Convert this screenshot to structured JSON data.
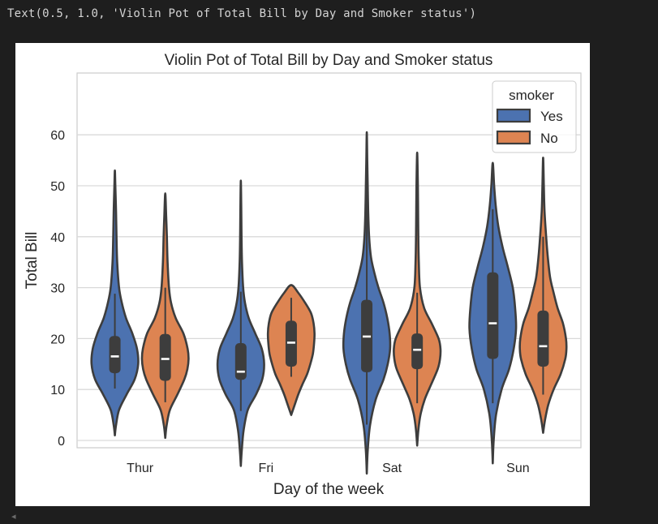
{
  "output": {
    "text": "Text(0.5, 1.0, 'Violin Pot of Total Bill by Day and Smoker status')"
  },
  "scroll_indicator": "◂",
  "chart_data": {
    "type": "violin",
    "title": "Violin Pot of Total Bill by Day and Smoker status",
    "xlabel": "Day of the week",
    "ylabel": "Total Bill",
    "categories": [
      "Thur",
      "Fri",
      "Sat",
      "Sun"
    ],
    "yticks": [
      0,
      10,
      20,
      30,
      40,
      50,
      60
    ],
    "ylim": [
      -10,
      64
    ],
    "grid": true,
    "legend": {
      "title": "smoker",
      "placement": "top-right"
    },
    "colors": {
      "Yes": "#4c72b0",
      "No": "#dd8452",
      "outline": "#3d3d3d",
      "grid": "#d9d9d9"
    },
    "series": [
      {
        "name": "Yes",
        "violins": [
          {
            "category": "Thur",
            "min": 1,
            "max": 53,
            "q1": 13.2,
            "median": 16.5,
            "q3": 20.5,
            "whisker_low": 10.2,
            "whisker_high": 28.8,
            "max_width": 0.37,
            "profile": [
              [
                1,
                0.0
              ],
              [
                3,
                0.05
              ],
              [
                6,
                0.18
              ],
              [
                9,
                0.5
              ],
              [
                12,
                0.85
              ],
              [
                15,
                1.0
              ],
              [
                18,
                0.95
              ],
              [
                21,
                0.75
              ],
              [
                24,
                0.48
              ],
              [
                27,
                0.3
              ],
              [
                30,
                0.18
              ],
              [
                35,
                0.1
              ],
              [
                40,
                0.07
              ],
              [
                45,
                0.05
              ],
              [
                50,
                0.02
              ],
              [
                53,
                0.0
              ]
            ]
          },
          {
            "category": "Fri",
            "min": -5,
            "max": 51,
            "q1": 11.9,
            "median": 13.5,
            "q3": 19.1,
            "whisker_low": 5.8,
            "whisker_high": 29.2,
            "max_width": 0.37,
            "profile": [
              [
                -5,
                0.0
              ],
              [
                -2,
                0.04
              ],
              [
                2,
                0.12
              ],
              [
                6,
                0.3
              ],
              [
                9,
                0.65
              ],
              [
                12,
                0.92
              ],
              [
                15,
                1.0
              ],
              [
                18,
                0.9
              ],
              [
                21,
                0.62
              ],
              [
                24,
                0.34
              ],
              [
                27,
                0.18
              ],
              [
                30,
                0.1
              ],
              [
                35,
                0.05
              ],
              [
                40,
                0.03
              ],
              [
                45,
                0.02
              ],
              [
                51,
                0.0
              ]
            ]
          },
          {
            "category": "Sat",
            "min": -6.5,
            "max": 60.5,
            "q1": 13.4,
            "median": 20.4,
            "q3": 27.6,
            "whisker_low": 3.1,
            "whisker_high": 48.2,
            "max_width": 0.37,
            "profile": [
              [
                -6.5,
                0.0
              ],
              [
                -2,
                0.04
              ],
              [
                3,
                0.14
              ],
              [
                8,
                0.38
              ],
              [
                12,
                0.72
              ],
              [
                15,
                0.9
              ],
              [
                18,
                1.0
              ],
              [
                21,
                0.98
              ],
              [
                24,
                0.88
              ],
              [
                27,
                0.72
              ],
              [
                30,
                0.5
              ],
              [
                33,
                0.32
              ],
              [
                36,
                0.18
              ],
              [
                40,
                0.1
              ],
              [
                45,
                0.06
              ],
              [
                50,
                0.04
              ],
              [
                55,
                0.02
              ],
              [
                60.5,
                0.0
              ]
            ]
          },
          {
            "category": "Sun",
            "min": -4.5,
            "max": 54.5,
            "q1": 16.0,
            "median": 23.0,
            "q3": 33.0,
            "whisker_low": 7.3,
            "whisker_high": 45.4,
            "max_width": 0.37,
            "profile": [
              [
                -4.5,
                0.0
              ],
              [
                0,
                0.04
              ],
              [
                5,
                0.14
              ],
              [
                10,
                0.38
              ],
              [
                14,
                0.7
              ],
              [
                18,
                0.9
              ],
              [
                22,
                1.0
              ],
              [
                26,
                0.96
              ],
              [
                30,
                0.86
              ],
              [
                34,
                0.65
              ],
              [
                38,
                0.42
              ],
              [
                42,
                0.24
              ],
              [
                46,
                0.13
              ],
              [
                50,
                0.06
              ],
              [
                54.5,
                0.0
              ]
            ]
          }
        ]
      },
      {
        "name": "No",
        "violins": [
          {
            "category": "Thur",
            "min": 0.5,
            "max": 48.5,
            "q1": 11.7,
            "median": 16.0,
            "q3": 20.9,
            "whisker_low": 7.5,
            "whisker_high": 30.0,
            "max_width": 0.37,
            "profile": [
              [
                0.5,
                0.0
              ],
              [
                3,
                0.06
              ],
              [
                6,
                0.2
              ],
              [
                9,
                0.52
              ],
              [
                12,
                0.82
              ],
              [
                14,
                0.95
              ],
              [
                16,
                1.0
              ],
              [
                18,
                0.96
              ],
              [
                21,
                0.78
              ],
              [
                24,
                0.45
              ],
              [
                27,
                0.25
              ],
              [
                30,
                0.16
              ],
              [
                35,
                0.1
              ],
              [
                40,
                0.07
              ],
              [
                44,
                0.04
              ],
              [
                48.5,
                0.0
              ]
            ]
          },
          {
            "category": "Fri",
            "min": 5,
            "max": 30.5,
            "q1": 14.5,
            "median": 19.2,
            "q3": 23.5,
            "whisker_low": 12.5,
            "whisker_high": 28.0,
            "max_width": 0.37,
            "profile": [
              [
                5,
                0.0
              ],
              [
                7,
                0.15
              ],
              [
                9,
                0.3
              ],
              [
                11,
                0.48
              ],
              [
                13,
                0.68
              ],
              [
                15,
                0.82
              ],
              [
                17,
                0.93
              ],
              [
                19,
                0.98
              ],
              [
                21,
                1.0
              ],
              [
                23,
                0.96
              ],
              [
                25,
                0.85
              ],
              [
                27,
                0.6
              ],
              [
                29,
                0.3
              ],
              [
                30.5,
                0.0
              ]
            ]
          },
          {
            "category": "Sat",
            "min": -1,
            "max": 56.5,
            "q1": 14.0,
            "median": 17.8,
            "q3": 21.0,
            "whisker_low": 7.3,
            "whisker_high": 29.0,
            "max_width": 0.37,
            "profile": [
              [
                -1,
                0.0
              ],
              [
                2,
                0.05
              ],
              [
                5,
                0.14
              ],
              [
                8,
                0.32
              ],
              [
                11,
                0.6
              ],
              [
                14,
                0.88
              ],
              [
                16,
                0.98
              ],
              [
                18,
                1.0
              ],
              [
                20,
                0.92
              ],
              [
                23,
                0.62
              ],
              [
                26,
                0.3
              ],
              [
                30,
                0.12
              ],
              [
                35,
                0.07
              ],
              [
                40,
                0.05
              ],
              [
                45,
                0.04
              ],
              [
                50,
                0.03
              ],
              [
                56.5,
                0.0
              ]
            ]
          },
          {
            "category": "Sun",
            "min": 1.5,
            "max": 55.5,
            "q1": 14.5,
            "median": 18.5,
            "q3": 25.5,
            "whisker_low": 9.0,
            "whisker_high": 40.0,
            "max_width": 0.37,
            "profile": [
              [
                1.5,
                0.0
              ],
              [
                4,
                0.08
              ],
              [
                7,
                0.22
              ],
              [
                10,
                0.45
              ],
              [
                13,
                0.75
              ],
              [
                16,
                0.95
              ],
              [
                18,
                1.0
              ],
              [
                20,
                0.98
              ],
              [
                23,
                0.85
              ],
              [
                26,
                0.62
              ],
              [
                29,
                0.45
              ],
              [
                32,
                0.3
              ],
              [
                36,
                0.2
              ],
              [
                40,
                0.13
              ],
              [
                45,
                0.06
              ],
              [
                50,
                0.03
              ],
              [
                55.5,
                0.0
              ]
            ]
          }
        ]
      }
    ]
  }
}
